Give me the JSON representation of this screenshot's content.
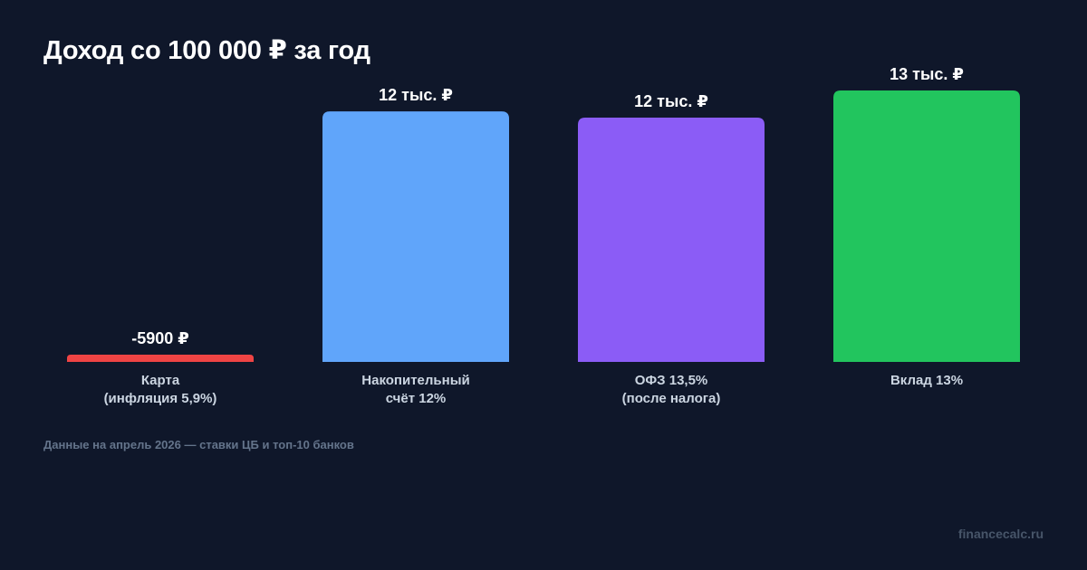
{
  "chart_data": {
    "type": "bar",
    "title": "Доход со 100 000 ₽ за год",
    "categories": [
      [
        "Карта",
        "(инфляция 5,9%)"
      ],
      [
        "Накопительный",
        "счёт 12%"
      ],
      [
        "ОФЗ 13,5%",
        "(после налога)"
      ],
      [
        "Вклад 13%"
      ]
    ],
    "values": [
      -5900,
      12000,
      11700,
      13000
    ],
    "value_labels": [
      "-5900 ₽",
      "12 тыс. ₽",
      "12 тыс. ₽",
      "13 тыс. ₽"
    ],
    "colors": [
      "#ef4444",
      "#60a5fa",
      "#8b5cf6",
      "#22c55e"
    ],
    "grid": false,
    "legend": "none"
  },
  "footer": {
    "source": "Данные на апрель 2026 — ставки ЦБ и топ-10 банков",
    "site": "financecalc.ru"
  }
}
